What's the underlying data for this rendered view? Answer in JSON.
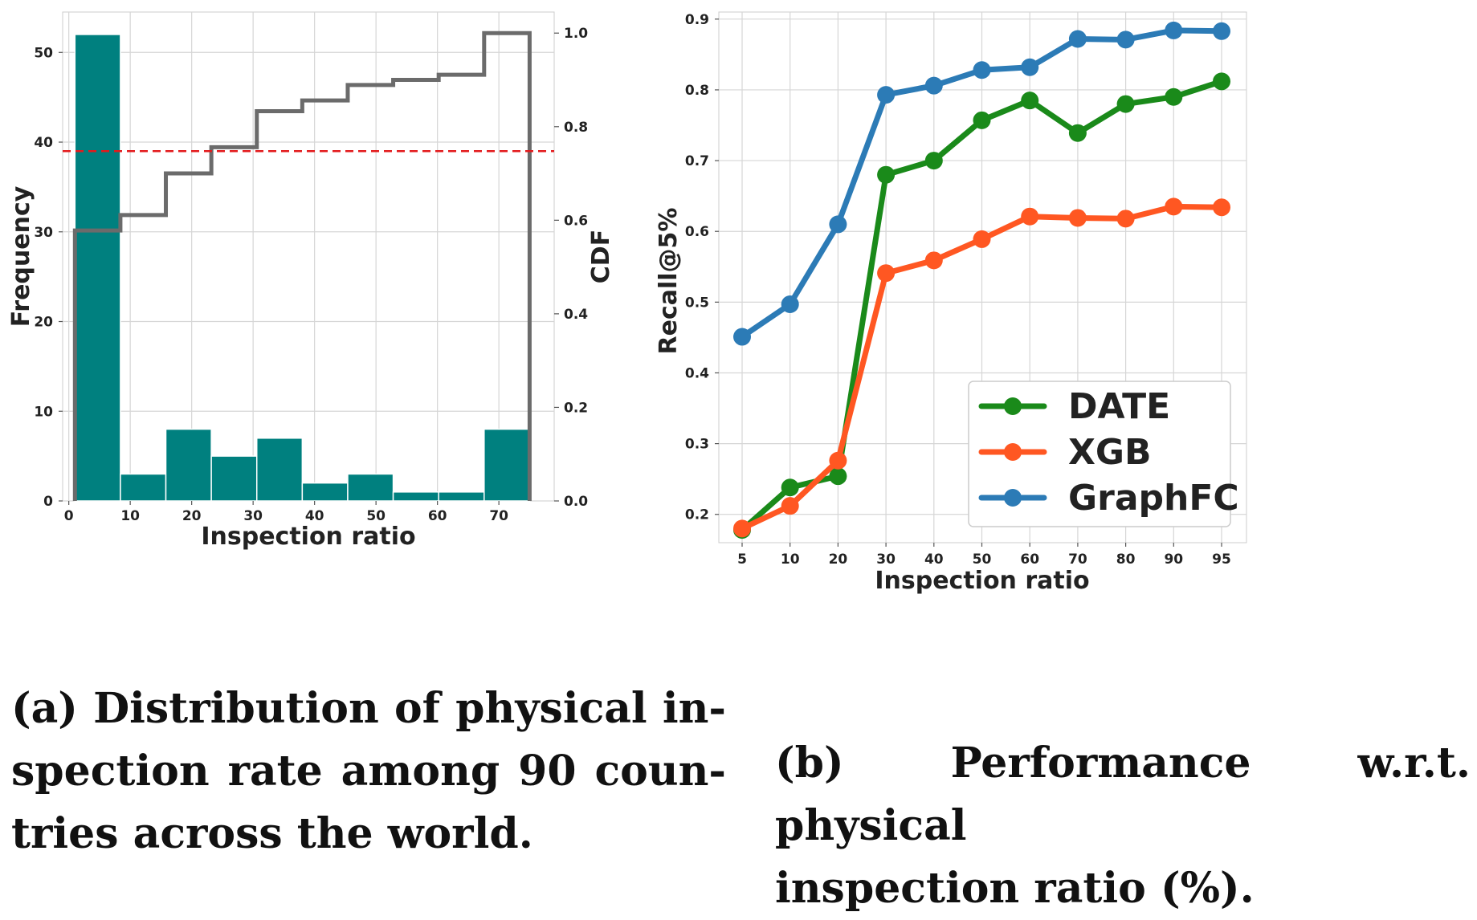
{
  "chart_data": [
    {
      "type": "bar",
      "title": "",
      "xlabel": "Inspection ratio",
      "ylabel": "Frequency",
      "y2label": "CDF",
      "xlim": [
        -1,
        79
      ],
      "ylim": [
        0,
        54.5
      ],
      "y2lim": [
        0,
        1.045
      ],
      "xticks": [
        0,
        10,
        20,
        30,
        40,
        50,
        60,
        70
      ],
      "yticks": [
        0,
        10,
        20,
        30,
        40,
        50
      ],
      "y2ticks": [
        "0.0",
        "0.2",
        "0.4",
        "0.6",
        "0.8",
        "1.0"
      ],
      "bins": [
        {
          "start": 1.0,
          "end": 8.4,
          "count": 52
        },
        {
          "start": 8.4,
          "end": 15.8,
          "count": 3
        },
        {
          "start": 15.8,
          "end": 23.2,
          "count": 8
        },
        {
          "start": 23.2,
          "end": 30.6,
          "count": 5
        },
        {
          "start": 30.6,
          "end": 38.0,
          "count": 7
        },
        {
          "start": 38.0,
          "end": 45.4,
          "count": 2
        },
        {
          "start": 45.4,
          "end": 52.8,
          "count": 3
        },
        {
          "start": 52.8,
          "end": 60.2,
          "count": 1
        },
        {
          "start": 60.2,
          "end": 67.6,
          "count": 1
        },
        {
          "start": 67.6,
          "end": 75.0,
          "count": 8
        }
      ],
      "cdf_steps": [
        {
          "x": 1.0,
          "y": 0.578
        },
        {
          "x": 8.4,
          "y": 0.611
        },
        {
          "x": 15.8,
          "y": 0.7
        },
        {
          "x": 23.2,
          "y": 0.756
        },
        {
          "x": 30.6,
          "y": 0.833
        },
        {
          "x": 38.0,
          "y": 0.856
        },
        {
          "x": 45.4,
          "y": 0.889
        },
        {
          "x": 52.8,
          "y": 0.9
        },
        {
          "x": 60.2,
          "y": 0.911
        },
        {
          "x": 67.6,
          "y": 1.0
        }
      ],
      "cdf_end_x": 75.0,
      "reference_line_frequency": 39,
      "colors": {
        "bar": "#00807f",
        "cdf": "#6b6b6b",
        "reference": "#e31a1c"
      }
    },
    {
      "type": "line",
      "title": "",
      "xlabel": "Inspection ratio",
      "ylabel": "Recall@5%",
      "categories": [
        "5",
        "10",
        "20",
        "30",
        "40",
        "50",
        "60",
        "70",
        "80",
        "90",
        "95"
      ],
      "ylim": [
        0.16,
        0.91
      ],
      "yticks": [
        "0.2",
        "0.3",
        "0.4",
        "0.5",
        "0.6",
        "0.7",
        "0.8",
        "0.9"
      ],
      "legend_position": "bottom-right",
      "series": [
        {
          "name": "DATE",
          "color": "#1a8a1a",
          "values": [
            0.178,
            0.238,
            0.254,
            0.68,
            0.7,
            0.757,
            0.785,
            0.739,
            0.78,
            0.79,
            0.812
          ]
        },
        {
          "name": "XGB",
          "color": "#ff5722",
          "values": [
            0.18,
            0.212,
            0.276,
            0.541,
            0.559,
            0.589,
            0.621,
            0.619,
            0.618,
            0.635,
            0.634
          ]
        },
        {
          "name": "GraphFC",
          "color": "#2c7bb6",
          "values": [
            0.451,
            0.497,
            0.61,
            0.793,
            0.806,
            0.828,
            0.832,
            0.872,
            0.871,
            0.884,
            0.883
          ]
        }
      ]
    }
  ],
  "captions": {
    "a_line1": "(a) Distribution of physical in-",
    "a_line2": "spection rate among 90 coun-",
    "a_line3": "tries across the world.",
    "b_line1": "(b) Performance w.r.t. physical",
    "b_line2": "inspection ratio (%)."
  }
}
